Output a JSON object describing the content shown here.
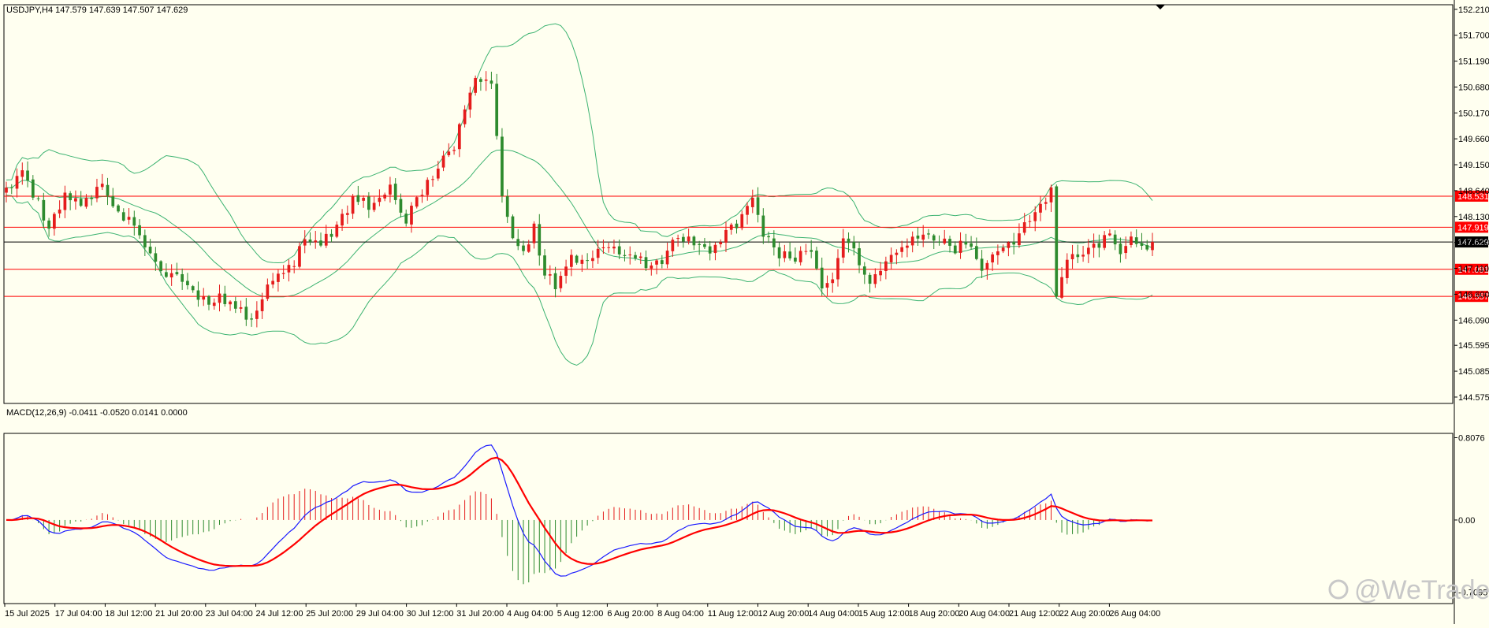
{
  "chart_data": {
    "type": "candlestick",
    "symbol_line": "USDJPY,H4  147.579 147.639 147.507 147.629",
    "current_price": 147.629,
    "price_axis": {
      "ylim": [
        144.45,
        152.3
      ],
      "ticks": [
        "152.210",
        "151.700",
        "151.190",
        "150.680",
        "150.170",
        "149.660",
        "149.150",
        "148.640",
        "148.130",
        "147.620",
        "147.110",
        "146.600",
        "146.090",
        "145.595",
        "145.085",
        "144.575"
      ]
    },
    "levels": [
      {
        "value": 148.531,
        "label": "148.531"
      },
      {
        "value": 147.919,
        "label": "147.919"
      },
      {
        "value": 147.091,
        "label": "147.091"
      },
      {
        "value": 146.557,
        "label": "146.557"
      }
    ],
    "current_tag": "147.629",
    "time_labels": [
      "15 Jul 2025",
      "17 Jul 04:00",
      "18 Jul 12:00",
      "21 Jul 20:00",
      "23 Jul 04:00",
      "24 Jul 12:00",
      "25 Jul 20:00",
      "29 Jul 04:00",
      "30 Jul 12:00",
      "31 Jul 20:00",
      "4 Aug 04:00",
      "5 Aug 12:00",
      "6 Aug 20:00",
      "8 Aug 04:00",
      "11 Aug 12:00",
      "12 Aug 20:00",
      "14 Aug 04:00",
      "15 Aug 12:00",
      "18 Aug 20:00",
      "20 Aug 04:00",
      "21 Aug 12:00",
      "22 Aug 20:00",
      "26 Aug 04:00"
    ],
    "close_path": [
      [
        0,
        148.7
      ],
      [
        3,
        148.95
      ],
      [
        6,
        148.4
      ],
      [
        8,
        147.9
      ],
      [
        11,
        148.6
      ],
      [
        15,
        148.4
      ],
      [
        18,
        148.8
      ],
      [
        21,
        148.2
      ],
      [
        24,
        148.05
      ],
      [
        27,
        147.4
      ],
      [
        29,
        147.1
      ],
      [
        32,
        146.95
      ],
      [
        35,
        146.65
      ],
      [
        38,
        146.35
      ],
      [
        40,
        146.6
      ],
      [
        43,
        146.3
      ],
      [
        46,
        146.15
      ],
      [
        48,
        146.6
      ],
      [
        51,
        147.0
      ],
      [
        54,
        147.2
      ],
      [
        56,
        147.7
      ],
      [
        59,
        147.6
      ],
      [
        62,
        147.9
      ],
      [
        65,
        148.5
      ],
      [
        69,
        148.3
      ],
      [
        72,
        148.7
      ],
      [
        75,
        148.1
      ],
      [
        78,
        148.6
      ],
      [
        81,
        149.1
      ],
      [
        84,
        149.55
      ],
      [
        86,
        150.2
      ],
      [
        88,
        150.75
      ],
      [
        91,
        150.8
      ],
      [
        93,
        148.5
      ],
      [
        95,
        147.6
      ],
      [
        97,
        147.4
      ],
      [
        99,
        147.9
      ],
      [
        101,
        147.0
      ],
      [
        103,
        146.8
      ],
      [
        106,
        147.4
      ],
      [
        108,
        147.2
      ],
      [
        111,
        147.4
      ],
      [
        114,
        147.5
      ],
      [
        117,
        147.3
      ],
      [
        120,
        147.2
      ],
      [
        123,
        147.3
      ],
      [
        126,
        147.8
      ],
      [
        129,
        147.6
      ],
      [
        132,
        147.4
      ],
      [
        135,
        147.8
      ],
      [
        138,
        148.1
      ],
      [
        140,
        148.4
      ],
      [
        142,
        147.8
      ],
      [
        145,
        147.4
      ],
      [
        148,
        147.3
      ],
      [
        151,
        147.5
      ],
      [
        153,
        146.7
      ],
      [
        155,
        146.8
      ],
      [
        157,
        147.8
      ],
      [
        160,
        147.2
      ],
      [
        162,
        146.8
      ],
      [
        164,
        147.1
      ],
      [
        167,
        147.4
      ],
      [
        170,
        147.8
      ],
      [
        173,
        147.7
      ],
      [
        176,
        147.7
      ],
      [
        178,
        147.5
      ],
      [
        180,
        147.6
      ],
      [
        183,
        147.1
      ],
      [
        186,
        147.5
      ],
      [
        189,
        147.6
      ],
      [
        192,
        148.1
      ],
      [
        194,
        148.4
      ],
      [
        196,
        148.6
      ],
      [
        197,
        146.6
      ],
      [
        199,
        147.3
      ],
      [
        202,
        147.4
      ],
      [
        205,
        147.6
      ],
      [
        207,
        147.75
      ],
      [
        209,
        147.35
      ],
      [
        211,
        147.65
      ],
      [
        213,
        147.5
      ],
      [
        215,
        147.629
      ]
    ],
    "macd": {
      "label": "MACD(12,26,9) -0.0411 -0.0520 0.0141 0.0000",
      "ylim": [
        -0.82,
        0.85
      ],
      "ticks": [
        {
          "value": 0.8076,
          "label": "0.8076"
        },
        {
          "value": 0.0,
          "label": "0.00"
        },
        {
          "value": -0.7095,
          "label": "-0.7095"
        }
      ]
    },
    "watermark": "@WeTrade"
  },
  "colors": {
    "background": "#fffff0",
    "bull": "#e51c1c",
    "bear": "#2e8b2e",
    "bands": "#3cb371",
    "level": "#ff0000",
    "macd_fast": "#1a1aff",
    "macd_signal": "#ff0000"
  }
}
